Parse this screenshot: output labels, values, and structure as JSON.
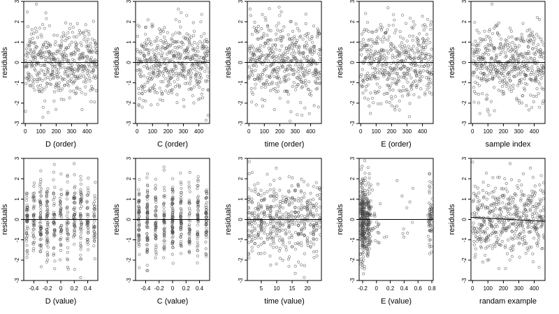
{
  "figure_title": "",
  "colors": {
    "points": "#444444",
    "axes": "#000000",
    "background": "#ffffff"
  },
  "chart_data": [
    {
      "type": "scatter",
      "xlabel": "D (order)",
      "ylabel": "residuals",
      "xlim": [
        -10,
        470
      ],
      "ylim": [
        -3,
        3
      ],
      "xticks": [
        0,
        100,
        200,
        300,
        400
      ],
      "yticks": [
        -3,
        -2,
        -1,
        0,
        1,
        2,
        3
      ],
      "reference_line_y": 0,
      "grid": false,
      "distribution": {
        "kind": "uniform",
        "n": 470,
        "x_range": [
          0,
          470
        ],
        "y_sd": 0.95
      }
    },
    {
      "type": "scatter",
      "xlabel": "C (order)",
      "ylabel": "residuals",
      "xlim": [
        -10,
        470
      ],
      "ylim": [
        -3,
        3
      ],
      "xticks": [
        0,
        100,
        200,
        300,
        400
      ],
      "yticks": [
        -3,
        -2,
        -1,
        0,
        1,
        2,
        3
      ],
      "reference_line_y": 0,
      "grid": false,
      "distribution": {
        "kind": "uniform",
        "n": 470,
        "x_range": [
          0,
          470
        ],
        "y_sd": 0.95
      }
    },
    {
      "type": "scatter",
      "xlabel": "time (order)",
      "ylabel": "residuals",
      "xlim": [
        -10,
        470
      ],
      "ylim": [
        -3,
        3
      ],
      "xticks": [
        0,
        100,
        200,
        300,
        400
      ],
      "yticks": [
        -3,
        -2,
        -1,
        0,
        1,
        2,
        3
      ],
      "reference_line_y": 0,
      "grid": false,
      "distribution": {
        "kind": "uniform",
        "n": 470,
        "x_range": [
          0,
          470
        ],
        "y_sd": 0.95
      }
    },
    {
      "type": "scatter",
      "xlabel": "E (order)",
      "ylabel": "residuals",
      "xlim": [
        -10,
        470
      ],
      "ylim": [
        -3,
        3
      ],
      "xticks": [
        0,
        100,
        200,
        300,
        400
      ],
      "yticks": [
        -3,
        -2,
        -1,
        0,
        1,
        2,
        3
      ],
      "reference_line_y": 0,
      "grid": false,
      "distribution": {
        "kind": "uniform",
        "n": 470,
        "x_range": [
          0,
          470
        ],
        "y_sd": 0.95
      }
    },
    {
      "type": "scatter",
      "xlabel": "sample index",
      "ylabel": "residuals",
      "xlim": [
        -10,
        470
      ],
      "ylim": [
        -3,
        3
      ],
      "xticks": [
        0,
        100,
        200,
        300,
        400
      ],
      "yticks": [
        -3,
        -2,
        -1,
        0,
        1,
        2,
        3
      ],
      "reference_line_y": 0,
      "grid": false,
      "distribution": {
        "kind": "uniform",
        "n": 470,
        "x_range": [
          0,
          470
        ],
        "y_sd": 0.95
      }
    },
    {
      "type": "scatter",
      "xlabel": "D (value)",
      "ylabel": "residuals",
      "xlim": [
        -0.55,
        0.55
      ],
      "ylim": [
        -3,
        3
      ],
      "xticks": [
        -0.4,
        -0.2,
        0.0,
        0.2,
        0.4
      ],
      "yticks": [
        -3,
        -2,
        -1,
        0,
        1,
        2,
        3
      ],
      "reference_line_y": 0,
      "grid": false,
      "distribution": {
        "kind": "discrete",
        "n": 470,
        "levels": [
          -0.5,
          -0.4,
          -0.3,
          -0.2,
          -0.1,
          0.0,
          0.1,
          0.2,
          0.3,
          0.4,
          0.5
        ],
        "jitter": 0.012,
        "y_sd": 0.95
      }
    },
    {
      "type": "scatter",
      "xlabel": "C (value)",
      "ylabel": "residuals",
      "xlim": [
        -0.55,
        0.55
      ],
      "ylim": [
        -3,
        3
      ],
      "xticks": [
        -0.4,
        -0.2,
        0.0,
        0.2,
        0.4
      ],
      "yticks": [
        -3,
        -2,
        -1,
        0,
        1,
        2,
        3
      ],
      "reference_line_y": 0,
      "grid": false,
      "distribution": {
        "kind": "discrete",
        "n": 470,
        "levels": [
          -0.5,
          -0.375,
          -0.25,
          -0.125,
          0.0,
          0.125,
          0.25,
          0.375,
          0.5
        ],
        "jitter": 0.008,
        "y_sd": 0.95
      }
    },
    {
      "type": "scatter",
      "xlabel": "time (value)",
      "ylabel": "residuals",
      "xlim": [
        0.5,
        24.5
      ],
      "ylim": [
        -3,
        3
      ],
      "xticks": [
        5,
        10,
        15,
        20
      ],
      "yticks": [
        -3,
        -2,
        -1,
        0,
        1,
        2,
        3
      ],
      "reference_line_y": 0,
      "grid": false,
      "distribution": {
        "kind": "discrete",
        "n": 470,
        "levels": [
          1,
          2,
          3,
          4,
          5,
          6,
          7,
          8,
          9,
          10,
          11,
          12,
          13,
          14,
          15,
          16,
          17,
          18,
          19,
          20,
          21,
          22,
          23,
          24
        ],
        "jitter": 0.15,
        "y_sd": 0.95
      }
    },
    {
      "type": "scatter",
      "xlabel": "E (value)",
      "ylabel": "residuals",
      "xlim": [
        -0.25,
        0.82
      ],
      "ylim": [
        -3,
        3
      ],
      "xticks": [
        -0.2,
        0.0,
        0.2,
        0.4,
        0.6,
        0.8
      ],
      "yticks": [
        -3,
        -2,
        -1,
        0,
        1,
        2,
        3
      ],
      "reference_line_y": 0,
      "grid": false,
      "distribution": {
        "kind": "clustered",
        "n": 470,
        "clusters": [
          {
            "center": -0.2,
            "spread": 0.025,
            "weight": 0.55
          },
          {
            "center": -0.12,
            "spread": 0.02,
            "weight": 0.22
          },
          {
            "center": 0.0,
            "spread": 0.05,
            "weight": 0.05
          },
          {
            "center": 0.4,
            "spread": 0.2,
            "weight": 0.04
          },
          {
            "center": 0.78,
            "spread": 0.02,
            "weight": 0.14
          }
        ],
        "y_sd": 0.95
      }
    },
    {
      "type": "scatter",
      "xlabel": "randam example",
      "ylabel": "residuals",
      "xlim": [
        -10,
        470
      ],
      "ylim": [
        -3,
        3
      ],
      "xticks": [
        0,
        100,
        200,
        300,
        400
      ],
      "yticks": [
        -3,
        -2,
        -1,
        0,
        1,
        2,
        3
      ],
      "reference_line_y": 0.1,
      "reference_line_slope": -0.0004,
      "grid": false,
      "distribution": {
        "kind": "uniform",
        "n": 470,
        "x_range": [
          0,
          470
        ],
        "y_sd": 0.95
      }
    }
  ]
}
